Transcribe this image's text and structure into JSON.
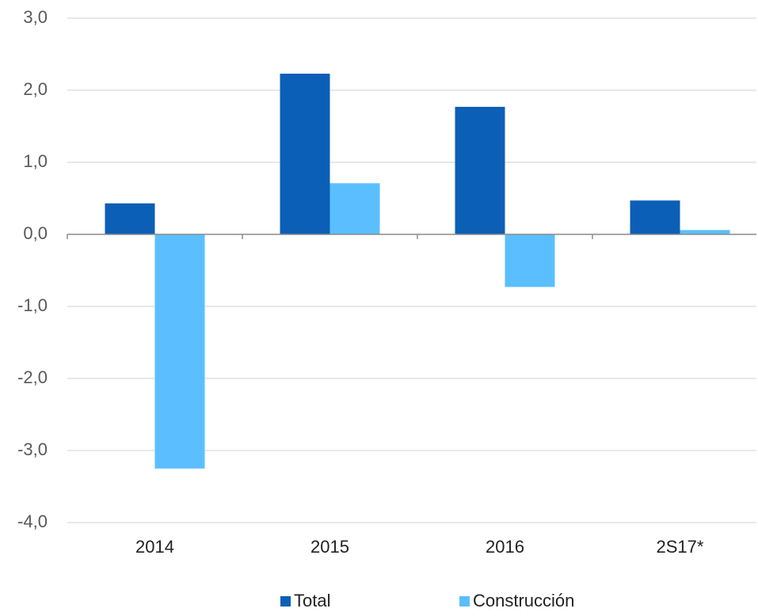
{
  "chart_data": {
    "type": "bar",
    "categories": [
      "2014",
      "2015",
      "2016",
      "2S17*"
    ],
    "series": [
      {
        "name": "Total",
        "color": "#0b5fb6",
        "values": [
          0.43,
          2.23,
          1.77,
          0.47
        ]
      },
      {
        "name": "Construcción",
        "color": "#5bbfff",
        "values": [
          -3.25,
          0.71,
          -0.73,
          0.06
        ]
      }
    ],
    "ylim": [
      -4,
      3
    ],
    "yticks": [
      {
        "value": -4,
        "label": "-4,0"
      },
      {
        "value": -3,
        "label": "-3,0"
      },
      {
        "value": -2,
        "label": "-2,0"
      },
      {
        "value": -1,
        "label": "-1,0"
      },
      {
        "value": 0,
        "label": "0,0"
      },
      {
        "value": 1,
        "label": "1,0"
      },
      {
        "value": 2,
        "label": "2,0"
      },
      {
        "value": 3,
        "label": "3,0"
      }
    ],
    "grid": true,
    "legend": "bottom"
  }
}
